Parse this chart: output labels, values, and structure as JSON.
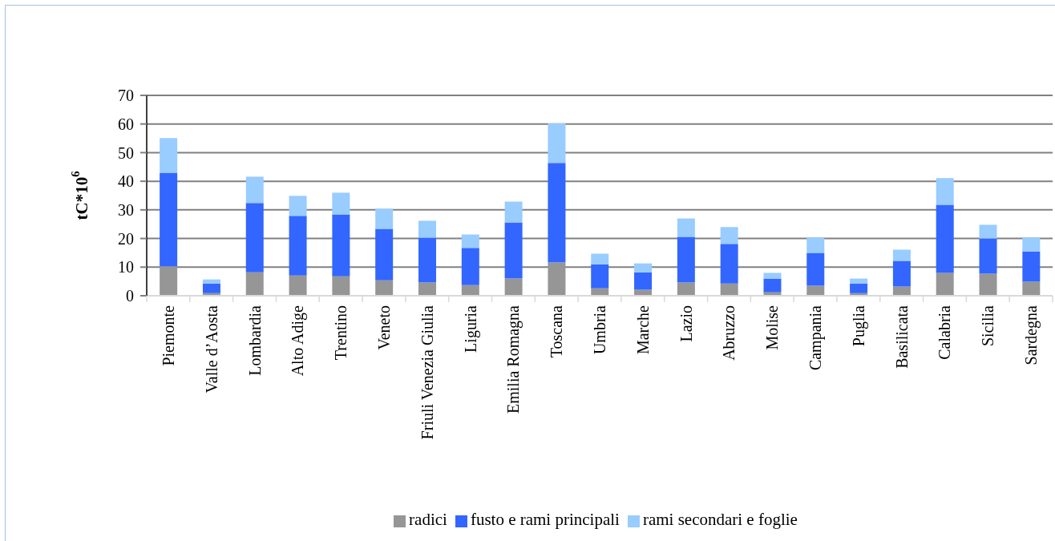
{
  "chart_data": {
    "type": "bar",
    "stacked": true,
    "ylabel": "tC*10$^{6}$",
    "categories": [
      "Piemonte",
      "Valle d’Aosta",
      "Lombardia",
      "Alto Adige",
      "Trentino",
      "Veneto",
      "Friuli Venezia Giulia",
      "Liguria",
      "Emilia Romagna",
      "Toscana",
      "Umbria",
      "Marche",
      "Lazio",
      "Abruzzo",
      "Molise",
      "Campania",
      "Puglia",
      "Basilicata",
      "Calabria",
      "Sicilia",
      "Sardegna"
    ],
    "series": [
      {
        "name": "radici",
        "color": "#969696",
        "values": [
          10.3,
          0.9,
          8.2,
          7.1,
          6.8,
          5.4,
          4.6,
          3.7,
          6.0,
          11.6,
          2.6,
          2.1,
          4.6,
          4.3,
          1.2,
          3.5,
          0.9,
          3.2,
          8.0,
          7.7,
          4.9
        ]
      },
      {
        "name": "fusto e rami principali",
        "color": "#3366ff",
        "values": [
          32.7,
          3.4,
          24.2,
          20.8,
          21.6,
          18.0,
          15.7,
          13.0,
          19.6,
          34.8,
          8.4,
          6.1,
          16.0,
          13.8,
          4.8,
          11.5,
          3.4,
          9.0,
          23.8,
          12.3,
          10.6
        ]
      },
      {
        "name": "rami secondari e foglie",
        "color": "#99ccff",
        "values": [
          12.1,
          1.4,
          9.2,
          7.0,
          7.6,
          7.0,
          5.9,
          4.7,
          7.3,
          13.8,
          3.7,
          3.1,
          6.4,
          5.9,
          2.0,
          5.3,
          1.7,
          3.9,
          9.3,
          4.8,
          4.8
        ]
      }
    ],
    "ylim": [
      0,
      70
    ],
    "yticks": [
      0,
      10,
      20,
      30,
      40,
      50,
      60,
      70
    ],
    "grid": "y",
    "legend": "bottom"
  }
}
